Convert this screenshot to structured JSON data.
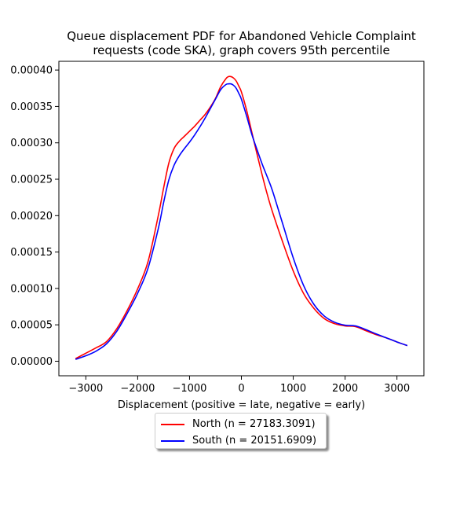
{
  "chart_data": {
    "type": "line",
    "title_lines": [
      "Queue displacement PDF for Abandoned Vehicle Complaint",
      "requests (code SKA), graph covers 95th percentile"
    ],
    "xlabel": "Displacement (positive = late, negative = early)",
    "ylabel": "",
    "xlim": [
      -3520,
      3520
    ],
    "ylim": [
      -2e-05,
      0.000412
    ],
    "xticks": [
      -3000,
      -2000,
      -1000,
      0,
      1000,
      2000,
      3000
    ],
    "xtick_labels": [
      "−3000",
      "−2000",
      "−1000",
      "0",
      "1000",
      "2000",
      "3000"
    ],
    "yticks": [
      0,
      5e-05,
      0.0001,
      0.00015,
      0.0002,
      0.00025,
      0.0003,
      0.00035,
      0.0004
    ],
    "ytick_labels": [
      "0.00000",
      "0.00005",
      "0.00010",
      "0.00015",
      "0.00020",
      "0.00025",
      "0.00030",
      "0.00035",
      "0.00040"
    ],
    "legend_position": "below",
    "grid": false,
    "series": [
      {
        "name": "North (n = 27183.3091)",
        "color": "#ff0000",
        "x": [
          -3200,
          -3000,
          -2800,
          -2600,
          -2400,
          -2200,
          -2000,
          -1800,
          -1600,
          -1500,
          -1400,
          -1300,
          -1200,
          -1100,
          -1000,
          -900,
          -800,
          -700,
          -600,
          -500,
          -400,
          -300,
          -250,
          -200,
          -150,
          -100,
          -50,
          0,
          100,
          200,
          300,
          400,
          500,
          600,
          800,
          1000,
          1200,
          1400,
          1600,
          1800,
          2000,
          2200,
          2400,
          2600,
          2800,
          3000,
          3200
        ],
        "y": [
          3.5e-06,
          1.1e-05,
          1.85e-05,
          2.7e-05,
          4.5e-05,
          7e-05,
          9.95e-05,
          0.000137,
          0.000201,
          0.000238,
          0.000272,
          0.000292,
          0.000302,
          0.000309,
          0.000316,
          0.000323,
          0.000331,
          0.000339,
          0.000349,
          0.000361,
          0.000377,
          0.000388,
          0.000391,
          0.000391,
          0.000389,
          0.000385,
          0.000378,
          0.00037,
          0.000345,
          0.000315,
          0.000285,
          0.000256,
          0.000229,
          0.000205,
          0.000163,
          0.000124,
          9.3e-05,
          7.25e-05,
          5.85e-05,
          5.15e-05,
          4.85e-05,
          4.75e-05,
          4.2e-05,
          3.65e-05,
          3.2e-05,
          2.65e-05,
          2.15e-05
        ]
      },
      {
        "name": "South (n = 20151.6909)",
        "color": "#0000ff",
        "x": [
          -3200,
          -3000,
          -2800,
          -2600,
          -2400,
          -2200,
          -2000,
          -1800,
          -1600,
          -1500,
          -1400,
          -1300,
          -1200,
          -1100,
          -1000,
          -900,
          -800,
          -700,
          -600,
          -500,
          -400,
          -300,
          -250,
          -200,
          -150,
          -100,
          -50,
          0,
          100,
          200,
          300,
          400,
          500,
          600,
          800,
          1000,
          1200,
          1400,
          1600,
          1800,
          2000,
          2200,
          2400,
          2600,
          2800,
          3000,
          3200
        ],
        "y": [
          2.5e-06,
          7.5e-06,
          1.4e-05,
          2.4e-05,
          4.15e-05,
          6.6e-05,
          9.35e-05,
          0.000128,
          0.000183,
          0.000218,
          0.000249,
          0.000269,
          0.000282,
          0.000292,
          0.000301,
          0.000311,
          0.000322,
          0.000334,
          0.000347,
          0.00036,
          0.000373,
          0.00038,
          0.000381,
          0.000381,
          0.000379,
          0.000375,
          0.000368,
          0.00036,
          0.000337,
          0.000312,
          0.000291,
          0.000271,
          0.000253,
          0.000234,
          0.000188,
          0.000142,
          0.000104,
          7.8e-05,
          6.2e-05,
          5.35e-05,
          4.95e-05,
          4.85e-05,
          4.35e-05,
          3.75e-05,
          3.2e-05,
          2.65e-05,
          2.15e-05
        ]
      }
    ]
  }
}
